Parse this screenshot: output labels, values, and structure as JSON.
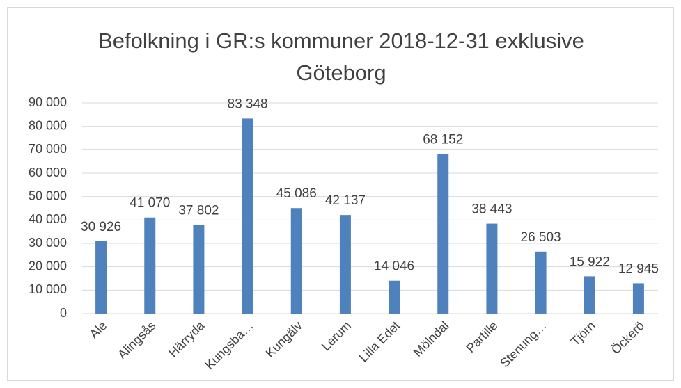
{
  "chart_data": {
    "type": "bar",
    "title": "Befolkning i GR:s kommuner 2018-12-31 exklusive Göteborg",
    "categories": [
      "Ale",
      "Alingsås",
      "Härryda",
      "Kungsba…",
      "Kungälv",
      "Lerum",
      "Lilla Edet",
      "Mölndal",
      "Partille",
      "Stenung…",
      "Tjörn",
      "Öckerö"
    ],
    "values": [
      30926,
      41070,
      37802,
      83348,
      45086,
      42137,
      14046,
      68152,
      38443,
      26503,
      15922,
      12945
    ],
    "value_labels": [
      "30 926",
      "41 070",
      "37 802",
      "83 348",
      "45 086",
      "42 137",
      "14 046",
      "68 152",
      "38 443",
      "26 503",
      "15 922",
      "12 945"
    ],
    "color": "#4f81bd",
    "ylim": [
      0,
      90000
    ],
    "yticks": [
      0,
      {
        "value": 10000,
        "label": "10 000"
      },
      {
        "value": 20000,
        "label": "20 000"
      },
      {
        "value": 30000,
        "label": "30 000"
      },
      {
        "value": 40000,
        "label": "40 000"
      },
      {
        "value": 50000,
        "label": "50 000"
      },
      {
        "value": 60000,
        "label": "60 000"
      },
      {
        "value": 70000,
        "label": "70 000"
      },
      {
        "value": 80000,
        "label": "80 000"
      },
      {
        "value": 90000,
        "label": "90 000"
      }
    ],
    "grid": true
  }
}
